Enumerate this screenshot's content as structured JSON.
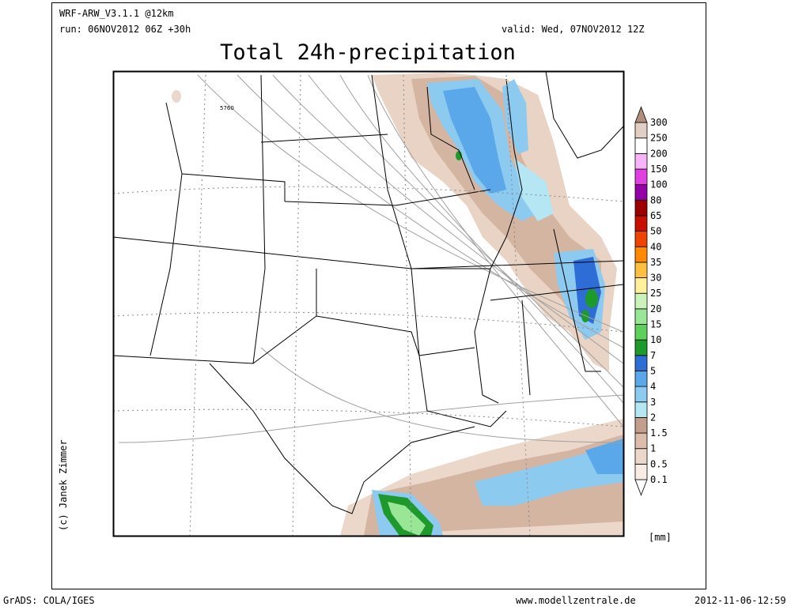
{
  "header": {
    "model": "WRF-ARW_V3.1.1 @12km",
    "run": "run: 06NOV2012 06Z +30h",
    "valid": "valid: Wed, 07NOV2012 12Z",
    "title": "Total 24h-precipitation"
  },
  "map": {
    "contour_label": "5760",
    "copyright": "(c) Janek Zimmer"
  },
  "colorbar": {
    "levels": [
      0.1,
      0.5,
      1,
      1.5,
      2,
      3,
      4,
      5,
      7,
      10,
      15,
      20,
      25,
      30,
      35,
      40,
      50,
      65,
      80,
      100,
      150,
      200,
      250,
      300
    ],
    "colors": [
      "#ffffff",
      "#f8ece4",
      "#ecd8cb",
      "#dcbcaa",
      "#c49e8c",
      "#b4e6f4",
      "#8ccaf0",
      "#5aa8ea",
      "#2e6cd6",
      "#1e9a2c",
      "#5ccf5c",
      "#98e696",
      "#ccf2bc",
      "#fff09c",
      "#ffc040",
      "#ff8a00",
      "#ee4400",
      "#c81000",
      "#9c0000",
      "#9200a6",
      "#e040e0",
      "#f8b4f8",
      "#ffffff",
      "#e2cfc4",
      "#b08e7e"
    ],
    "unit": "[mm]"
  },
  "footer": {
    "software": "GrADS: COLA/IGES",
    "website": "www.modellzentrale.de",
    "timestamp": "2012-11-06-12:59"
  }
}
